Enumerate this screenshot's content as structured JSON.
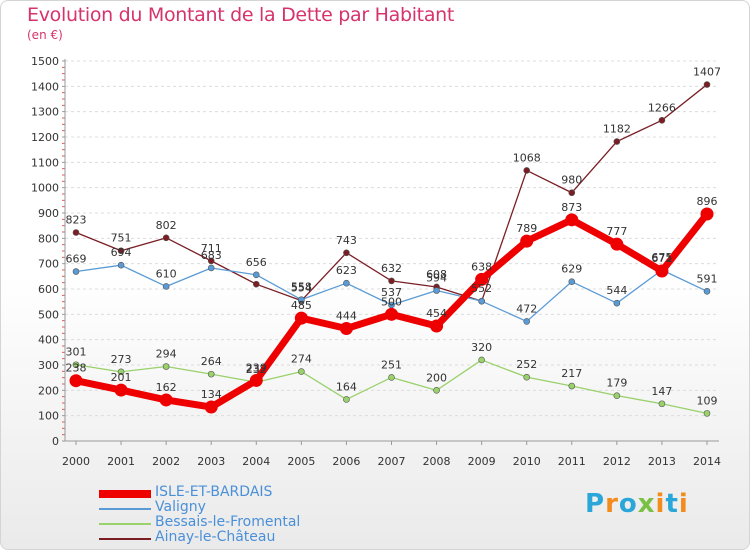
{
  "title": "Evolution du Montant de la Dette par Habitant",
  "unit": "(en €)",
  "logo": {
    "letters": [
      "P",
      "r",
      "o",
      "x",
      "i",
      "t",
      "i"
    ],
    "colors": [
      "#2aa6d8",
      "#f28c1c",
      "#2aa6d8",
      "#7ac143",
      "#f28c1c",
      "#2aa6d8",
      "#f28c1c"
    ]
  },
  "chart_data": {
    "type": "line",
    "x": [
      "2000",
      "2001",
      "2002",
      "2003",
      "2004",
      "2005",
      "2006",
      "2007",
      "2008",
      "2009",
      "2010",
      "2011",
      "2012",
      "2013",
      "2014"
    ],
    "ylim": [
      0,
      1500
    ],
    "yticks": [
      "0",
      "100",
      "200",
      "300",
      "400",
      "500",
      "600",
      "700",
      "800",
      "900",
      "1000",
      "1100",
      "1200",
      "1300",
      "1400",
      "1500"
    ],
    "grid": true,
    "legend_position": "bottom-left",
    "series": [
      {
        "name": "Ainay-le-Château",
        "color": "#7a1e24",
        "values": [
          823,
          751,
          802,
          711,
          619,
          554,
          743,
          632,
          608,
          552,
          1068,
          980,
          1182,
          1266,
          1407
        ],
        "labels": [
          "823",
          "751",
          "802",
          "711",
          "",
          "554",
          "743",
          "632",
          "608",
          "552",
          "1068",
          "980",
          "1182",
          "1266",
          "1407"
        ]
      },
      {
        "name": "Valigny",
        "color": "#5b9bd5",
        "values": [
          669,
          694,
          610,
          683,
          656,
          558,
          623,
          537,
          594,
          552,
          472,
          629,
          544,
          675,
          591
        ],
        "labels": [
          "669",
          "694",
          "610",
          "683",
          "656",
          "558",
          "623",
          "537",
          "594",
          "",
          "472",
          "629",
          "544",
          "675",
          "591"
        ]
      },
      {
        "name": "Bessais-le-Fromental",
        "color": "#99d16b",
        "values": [
          301,
          273,
          294,
          264,
          232,
          274,
          164,
          251,
          200,
          320,
          252,
          217,
          179,
          147,
          109
        ],
        "labels": [
          "301",
          "273",
          "294",
          "264",
          "232",
          "274",
          "164",
          "251",
          "200",
          "320",
          "252",
          "217",
          "179",
          "147",
          "109"
        ]
      },
      {
        "name": "ISLE-ET-BARDAIS",
        "color": "#ee0000",
        "values": [
          238,
          201,
          162,
          134,
          239,
          485,
          444,
          500,
          454,
          638,
          789,
          873,
          777,
          671,
          896
        ],
        "labels": [
          "238",
          "201",
          "162",
          "134",
          "239",
          "485",
          "444",
          "500",
          "454",
          "638",
          "789",
          "873",
          "777",
          "671",
          "896"
        ]
      }
    ]
  },
  "legend": [
    "ISLE-ET-BARDAIS",
    "Valigny",
    "Bessais-le-Fromental",
    "Ainay-le-Château"
  ],
  "legend_colors": [
    "#ee0000",
    "#5b9bd5",
    "#99d16b",
    "#7a1e24"
  ]
}
